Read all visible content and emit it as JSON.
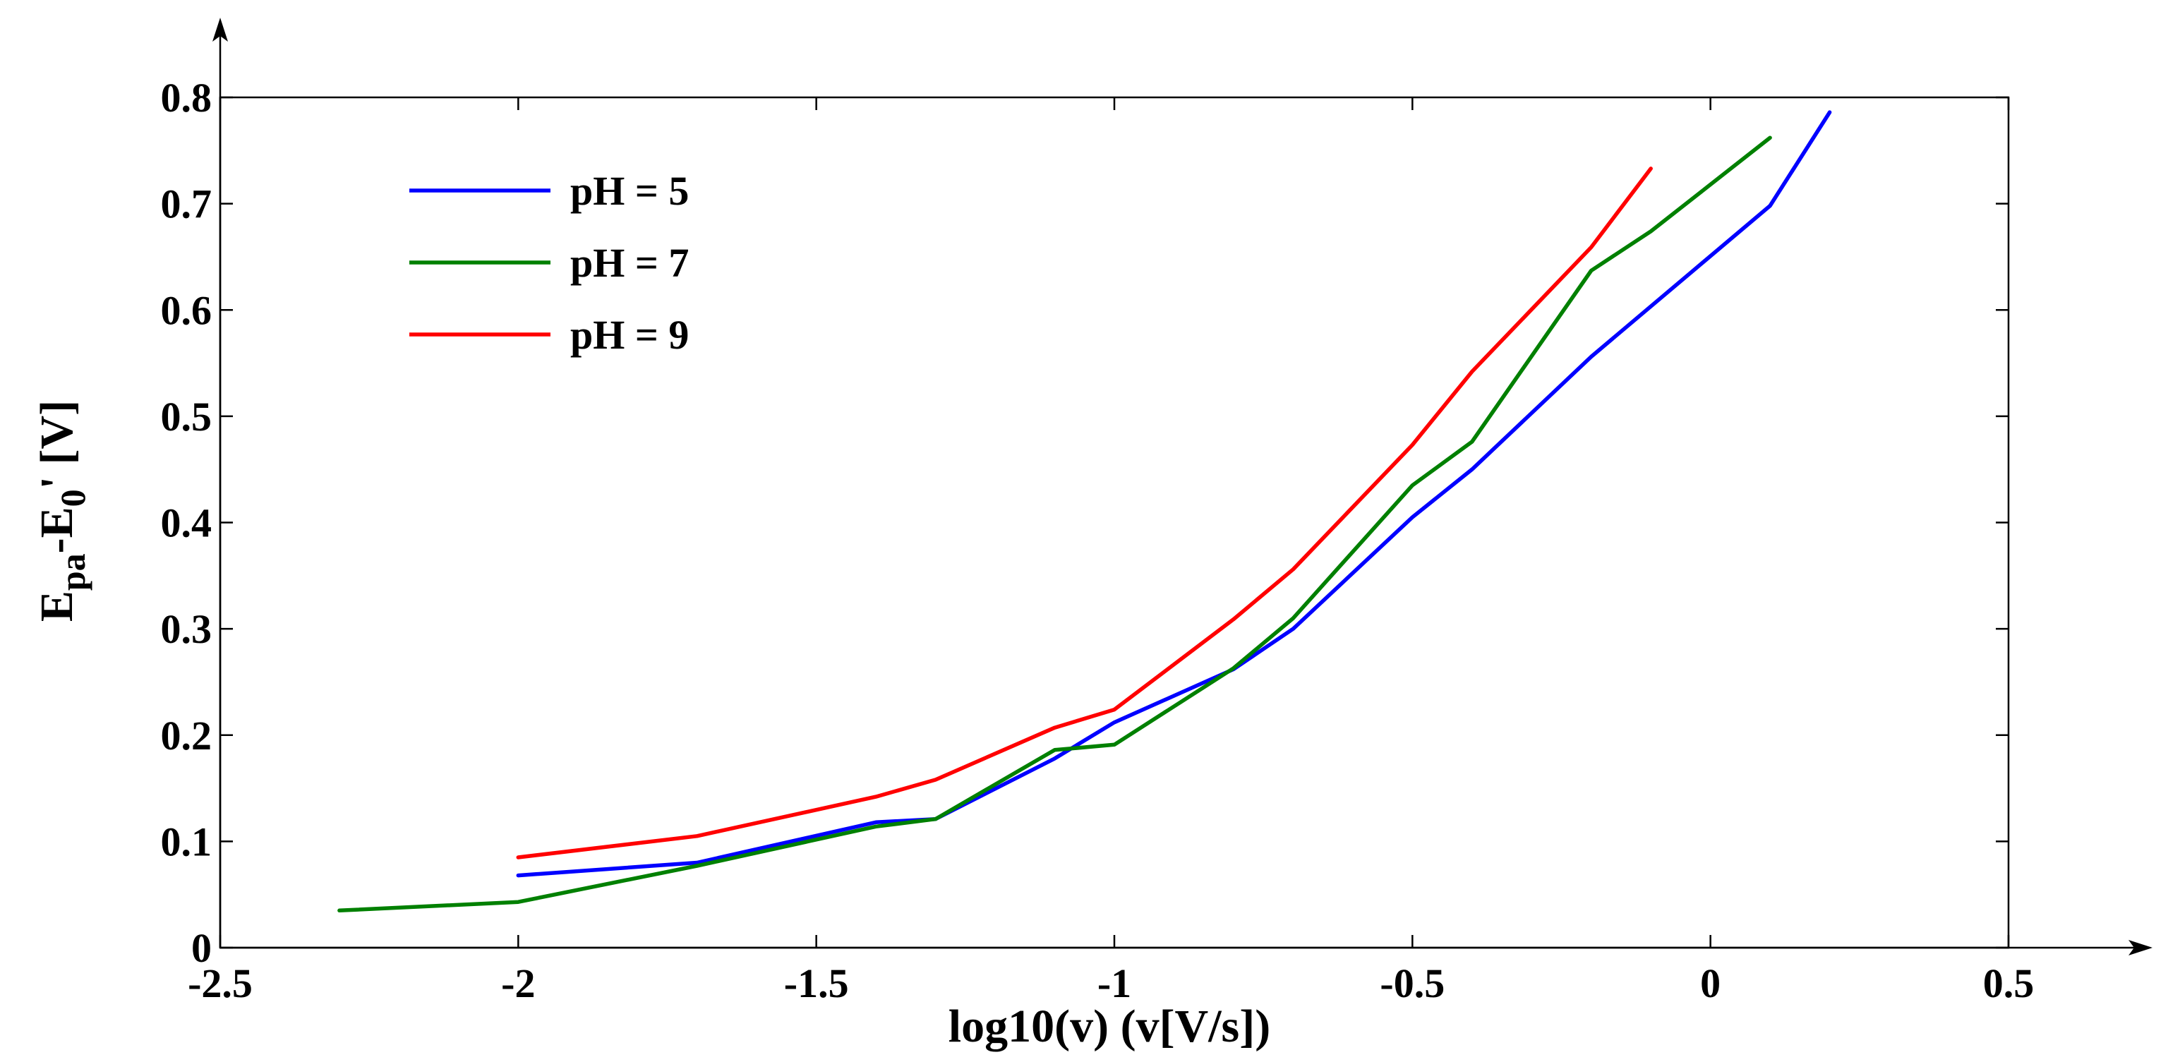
{
  "chart_data": {
    "type": "line",
    "title": "",
    "xlabel": "log10(v) (v[V/s])",
    "ylabel": {
      "main": "E",
      "sub1": "pa",
      "mid": "-E",
      "sub2": "0",
      "tail": "' [V]"
    },
    "xlim": [
      -2.5,
      0.5
    ],
    "ylim": [
      0,
      0.8
    ],
    "x_ticks": [
      -2.5,
      -2,
      -1.5,
      -1,
      -0.5,
      0,
      0.5
    ],
    "x_tick_labels": [
      "-2.5",
      "-2",
      "-1.5",
      "-1",
      "-0.5",
      "0",
      "0.5"
    ],
    "y_ticks": [
      0,
      0.1,
      0.2,
      0.3,
      0.4,
      0.5,
      0.6,
      0.7,
      0.8
    ],
    "y_tick_labels": [
      "0",
      "0.1",
      "0.2",
      "0.3",
      "0.4",
      "0.5",
      "0.6",
      "0.7",
      "0.8"
    ],
    "grid": false,
    "legend_position": "top-left",
    "series": [
      {
        "name": "pH = 5",
        "color": "#0000ff",
        "x": [
          -2.0,
          -1.7,
          -1.4,
          -1.3,
          -1.1,
          -1.0,
          -0.8,
          -0.7,
          -0.5,
          -0.4,
          -0.2,
          0.1,
          0.2
        ],
        "y": [
          0.068,
          0.08,
          0.118,
          0.121,
          0.178,
          0.212,
          0.262,
          0.3,
          0.405,
          0.45,
          0.556,
          0.698,
          0.786
        ]
      },
      {
        "name": "pH = 7",
        "color": "#008000",
        "x": [
          -2.3,
          -2.0,
          -1.7,
          -1.4,
          -1.3,
          -1.1,
          -1.0,
          -0.8,
          -0.7,
          -0.5,
          -0.4,
          -0.2,
          -0.1,
          0.1
        ],
        "y": [
          0.035,
          0.043,
          0.077,
          0.114,
          0.121,
          0.186,
          0.191,
          0.263,
          0.31,
          0.435,
          0.476,
          0.637,
          0.674,
          0.762
        ]
      },
      {
        "name": "pH = 9",
        "color": "#ff0000",
        "x": [
          -2.0,
          -1.7,
          -1.4,
          -1.3,
          -1.1,
          -1.0,
          -0.8,
          -0.7,
          -0.5,
          -0.4,
          -0.2,
          -0.1
        ],
        "y": [
          0.085,
          0.105,
          0.142,
          0.158,
          0.207,
          0.224,
          0.309,
          0.356,
          0.473,
          0.542,
          0.659,
          0.733
        ]
      }
    ]
  }
}
